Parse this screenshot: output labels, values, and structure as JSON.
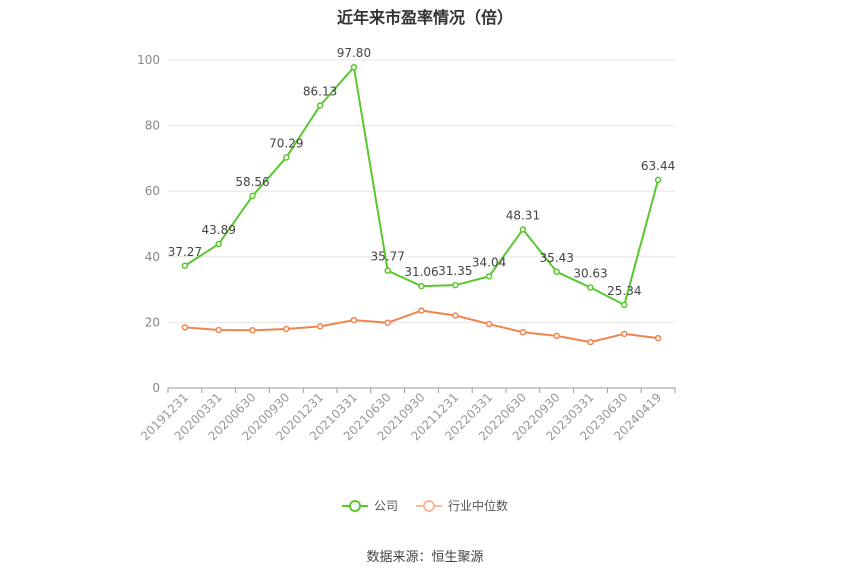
{
  "chart_data": {
    "type": "line",
    "title": "近年来市盈率情况（倍）",
    "categories": [
      "20191231",
      "20200331",
      "20200630",
      "20200930",
      "20201231",
      "20210331",
      "20210630",
      "20210930",
      "20211231",
      "20220331",
      "20220630",
      "20220930",
      "20230331",
      "20230630",
      "20240419"
    ],
    "series": [
      {
        "name": "公司",
        "color": "#5ac72f",
        "values": [
          37.27,
          43.89,
          58.56,
          70.29,
          86.13,
          97.8,
          35.77,
          31.06,
          31.35,
          34.04,
          48.31,
          35.43,
          30.63,
          25.34,
          63.44
        ],
        "labels": [
          "37.27",
          "43.89",
          "58.56",
          "70.29",
          "86.13",
          "97.80",
          "35.77",
          "31.06",
          "31.35",
          "34.04",
          "48.31",
          "35.43",
          "30.63",
          "25.34",
          "63.44"
        ]
      },
      {
        "name": "行业中位数",
        "color": "#f0844e",
        "values": [
          18.5,
          17.7,
          17.6,
          18.0,
          18.8,
          20.7,
          19.9,
          23.6,
          22.1,
          19.5,
          17.0,
          15.9,
          14.0,
          16.5,
          15.2
        ]
      }
    ],
    "yticks": [
      0,
      20,
      40,
      60,
      80,
      100
    ],
    "ylim": [
      0,
      100
    ],
    "grid": true,
    "legend_position": "bottom"
  },
  "source": "数据来源：恒生聚源"
}
